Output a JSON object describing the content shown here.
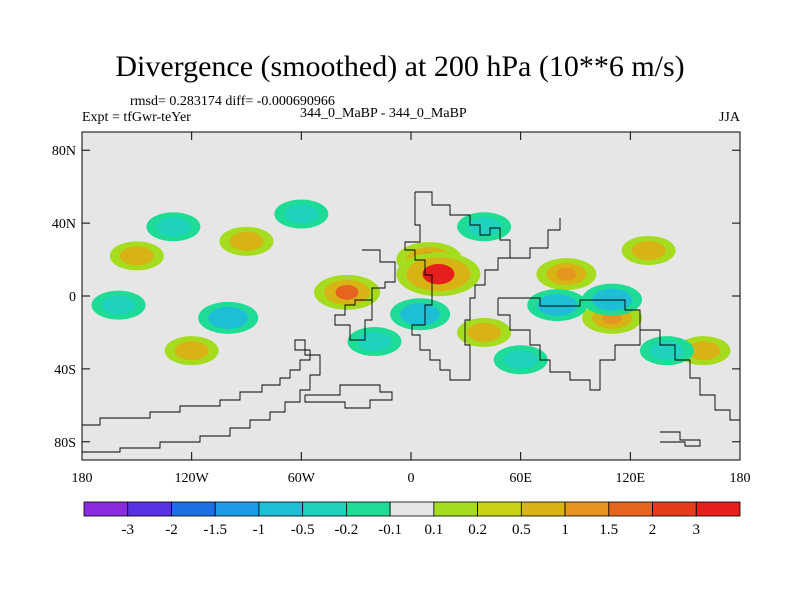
{
  "chart_data": {
    "type": "heatmap",
    "title": "Divergence (smoothed) at 200 hPa (10**6 m/s)",
    "stats_line": "rmsd= 0.283174 diff= -0.000690966",
    "left_label": "Expt = tfGwr-teYer",
    "center_label": "344_0_MaBP - 344_0_MaBP",
    "right_label": "JJA",
    "x_ticks": [
      "180",
      "120W",
      "60W",
      "0",
      "60E",
      "120E",
      "180"
    ],
    "y_ticks": [
      "80N",
      "40N",
      "0",
      "40S",
      "80S"
    ],
    "xlim": [
      -180,
      180
    ],
    "ylim": [
      -90,
      90
    ],
    "colorbar": {
      "labels": [
        "-3",
        "-2",
        "-1.5",
        "-1",
        "-0.5",
        "-0.2",
        "-0.1",
        "0.1",
        "0.2",
        "0.5",
        "1",
        "1.5",
        "2",
        "3"
      ],
      "colors": [
        "#8a2be2",
        "#5a32e6",
        "#1e6ee6",
        "#1e9be6",
        "#1ebed7",
        "#1ed2be",
        "#1edc96",
        "#e6e6e6",
        "#a5dc1e",
        "#c8d214",
        "#d7b414",
        "#e6961e",
        "#e6641e",
        "#e63c1e",
        "#e61e1e"
      ]
    },
    "field_features": [
      {
        "lon": 15,
        "lat": 12,
        "value": 3.0
      },
      {
        "lon": 10,
        "lat": 20,
        "value": 1.5
      },
      {
        "lon": -35,
        "lat": 2,
        "value": 1.5
      },
      {
        "lon": 85,
        "lat": 12,
        "value": 1.0
      },
      {
        "lon": 110,
        "lat": -12,
        "value": 1.0
      },
      {
        "lon": 130,
        "lat": 25,
        "value": 0.5
      },
      {
        "lon": -150,
        "lat": 22,
        "value": 0.5
      },
      {
        "lon": -90,
        "lat": 30,
        "value": 0.5
      },
      {
        "lon": 40,
        "lat": -20,
        "value": 0.5
      },
      {
        "lon": -120,
        "lat": -30,
        "value": 0.5
      },
      {
        "lon": 160,
        "lat": -30,
        "value": 0.5
      },
      {
        "lon": 5,
        "lat": -10,
        "value": -1.0
      },
      {
        "lon": 80,
        "lat": -5,
        "value": -1.0
      },
      {
        "lon": 110,
        "lat": -2,
        "value": -1.0
      },
      {
        "lon": -130,
        "lat": 38,
        "value": -0.5
      },
      {
        "lon": -100,
        "lat": -12,
        "value": -1.0
      },
      {
        "lon": -160,
        "lat": -5,
        "value": -0.5
      },
      {
        "lon": 40,
        "lat": 38,
        "value": -0.5
      },
      {
        "lon": 60,
        "lat": -35,
        "value": -0.5
      },
      {
        "lon": -60,
        "lat": 45,
        "value": -0.5
      },
      {
        "lon": 140,
        "lat": -30,
        "value": -0.5
      },
      {
        "lon": -20,
        "lat": -25,
        "value": -0.5
      }
    ]
  }
}
